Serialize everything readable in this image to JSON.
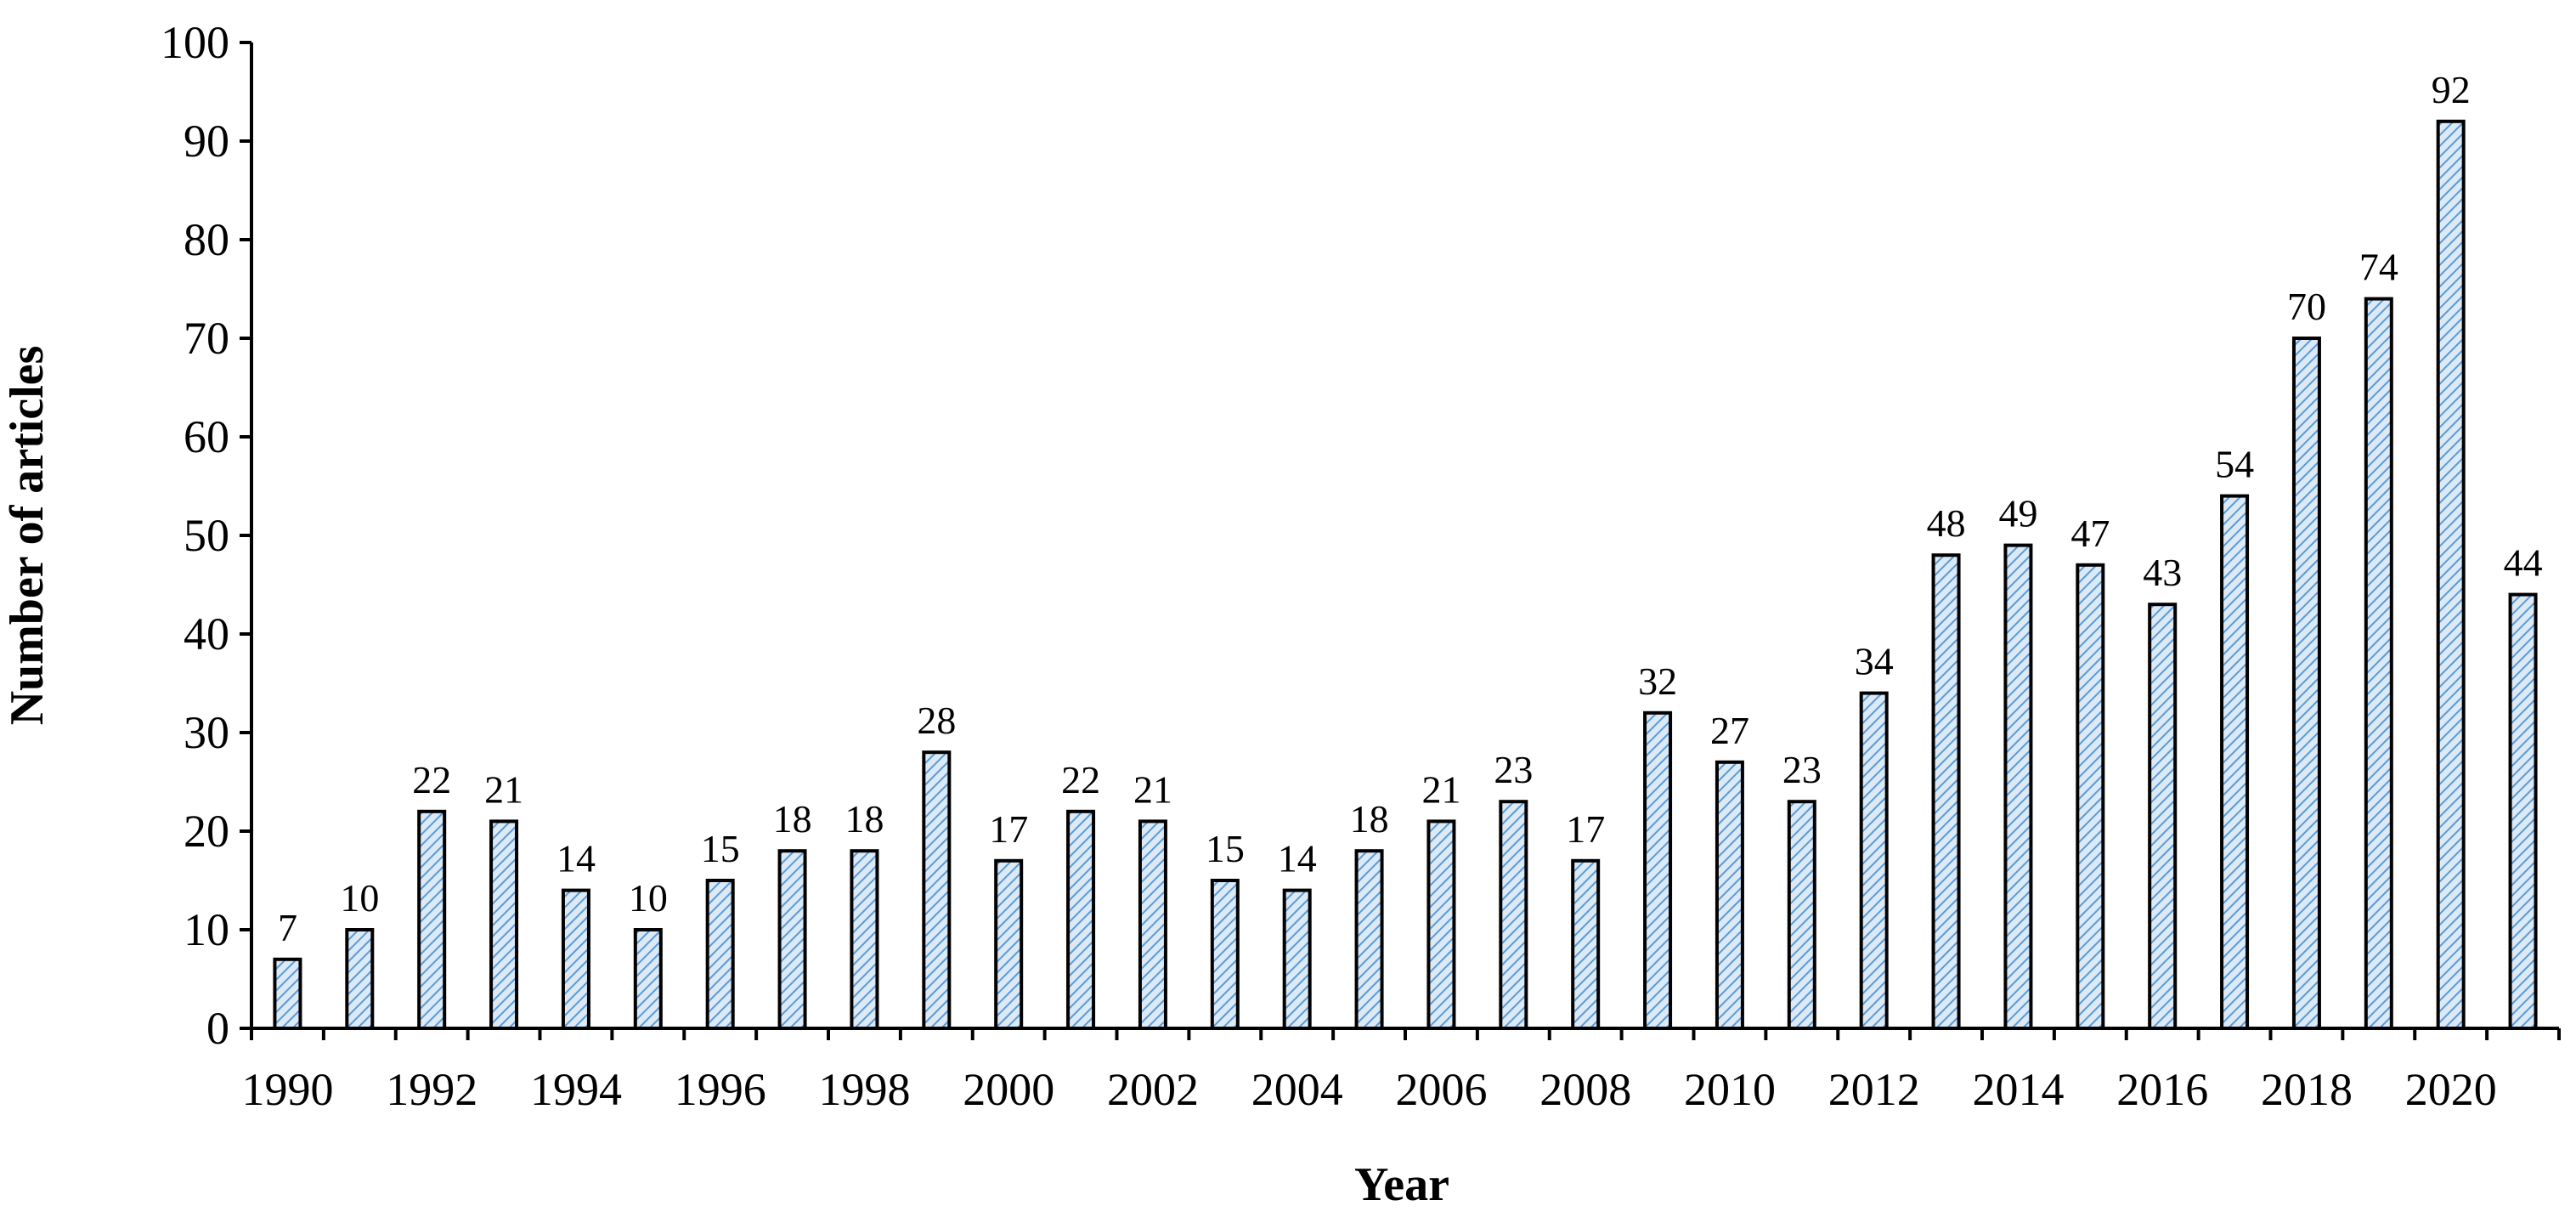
{
  "chart_data": {
    "type": "bar",
    "ylabel": "Number of articles",
    "xlabel": "Year",
    "ylim": [
      0,
      100
    ],
    "yticks": [
      0,
      10,
      20,
      30,
      40,
      50,
      60,
      70,
      80,
      90,
      100
    ],
    "grid": false,
    "legend": "none",
    "categories": [
      "1990",
      "1991",
      "1992",
      "1993",
      "1994",
      "1995",
      "1996",
      "1997",
      "1998",
      "1999",
      "2000",
      "2001",
      "2002",
      "2003",
      "2004",
      "2005",
      "2006",
      "2007",
      "2008",
      "2009",
      "2010",
      "2011",
      "2012",
      "2013",
      "2014",
      "2015",
      "2016",
      "2017",
      "2018",
      "2019",
      "2020",
      "2021"
    ],
    "xtick_labels": [
      "1990",
      "",
      "1992",
      "",
      "1994",
      "",
      "1996",
      "",
      "1998",
      "",
      "2000",
      "",
      "2002",
      "",
      "2004",
      "",
      "2006",
      "",
      "2008",
      "",
      "2010",
      "",
      "2012",
      "",
      "2014",
      "",
      "2016",
      "",
      "2018",
      "",
      "2020",
      ""
    ],
    "values": [
      7,
      10,
      22,
      21,
      14,
      10,
      15,
      18,
      18,
      28,
      17,
      22,
      21,
      15,
      14,
      18,
      21,
      23,
      17,
      32,
      27,
      23,
      34,
      48,
      49,
      47,
      43,
      54,
      70,
      74,
      92,
      44
    ],
    "data_labels": [
      "7",
      "10",
      "22",
      "21",
      "14",
      "10",
      "15",
      "18",
      "18",
      "28",
      "17",
      "22",
      "21",
      "15",
      "14",
      "18",
      "21",
      "23",
      "17",
      "32",
      "27",
      "23",
      "34",
      "48",
      "49",
      "47",
      "43",
      "54",
      "70",
      "74",
      "92",
      "44"
    ],
    "colors": {
      "bar_fill_base": "#dce9f6",
      "bar_hatch": "#5b9bd5",
      "bar_edge": "#000000",
      "axis": "#000000"
    }
  }
}
